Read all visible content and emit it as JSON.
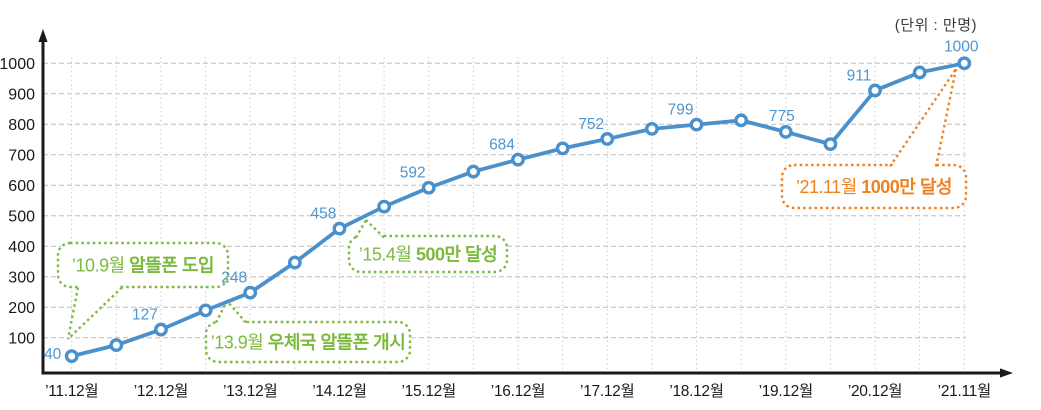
{
  "unit_label": "(단위 : 만명)",
  "colors": {
    "line": "#4A91CB",
    "value_label": "#4E95CF",
    "green_accent": "#7CBA3F",
    "orange_accent": "#F0811F",
    "axis": "#1A1A1A",
    "tick_label": "#1A1A1A",
    "grid_h": "#BDBDBD",
    "grid_v": "#CBCBCB"
  },
  "chart_data": {
    "type": "line",
    "unit_label": "(단위 : 만명)",
    "y_ticks": [
      100,
      200,
      300,
      400,
      500,
      600,
      700,
      800,
      900,
      1000
    ],
    "y_axis_range": [
      0,
      1050
    ],
    "grid": true,
    "x_tick_labels": [
      "’11.12월",
      "’12.12월",
      "’13.12월",
      "’14.12월",
      "’15.12월",
      "’16.12월",
      "’17.12월",
      "’18.12월",
      "’19.12월",
      "’20.12월",
      "’21.11월"
    ],
    "points": [
      {
        "x": "’11.12",
        "value": 40,
        "label": "40"
      },
      {
        "x": "’12.6",
        "value": 76,
        "estimated": true
      },
      {
        "x": "’12.12",
        "value": 127,
        "label": "127"
      },
      {
        "x": "’13.6",
        "value": 190,
        "estimated": true
      },
      {
        "x": "’13.12",
        "value": 248,
        "label": "248"
      },
      {
        "x": "’14.6",
        "value": 347,
        "estimated": true
      },
      {
        "x": "’14.12",
        "value": 458,
        "label": "458"
      },
      {
        "x": "’15.6",
        "value": 530,
        "estimated": true
      },
      {
        "x": "’15.12",
        "value": 592,
        "label": "592"
      },
      {
        "x": "’16.6",
        "value": 645,
        "estimated": true
      },
      {
        "x": "’16.12",
        "value": 684,
        "label": "684"
      },
      {
        "x": "’17.6",
        "value": 721,
        "estimated": true
      },
      {
        "x": "’17.12",
        "value": 752,
        "label": "752"
      },
      {
        "x": "’18.6",
        "value": 785,
        "estimated": true
      },
      {
        "x": "’18.12",
        "value": 799,
        "label": "799"
      },
      {
        "x": "’19.6",
        "value": 813,
        "estimated": true
      },
      {
        "x": "’19.12",
        "value": 775,
        "label": "775"
      },
      {
        "x": "’20.6",
        "value": 735,
        "estimated": true
      },
      {
        "x": "’20.12",
        "value": 911,
        "label": "911"
      },
      {
        "x": "’21.6",
        "value": 970,
        "estimated": true
      },
      {
        "x": "’21.11",
        "value": 1000,
        "label": "1000"
      }
    ],
    "annotations": [
      {
        "prefix": "’10.9월 ",
        "text": "알뜰폰 도입",
        "theme": "green"
      },
      {
        "prefix": "’13.9월 ",
        "text": "우체국 알뜰폰 개시",
        "theme": "green"
      },
      {
        "prefix": "’15.4월 ",
        "text": "500만 달성",
        "theme": "green"
      },
      {
        "prefix": "’21.11월 ",
        "text": "1000만 달성",
        "theme": "orange"
      }
    ]
  }
}
